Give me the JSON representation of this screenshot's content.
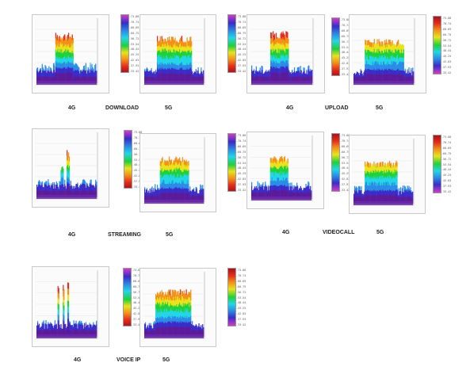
{
  "rows": [
    {
      "left": {
        "label_4g": "4G",
        "service": "DOWNLOAD",
        "label_5g": "5G"
      },
      "right": {
        "label_4g": "4G",
        "service": "UPLOAD",
        "label_5g": "5G"
      }
    },
    {
      "left": {
        "label_4g": "4G",
        "service": "STREAMING",
        "label_5g": "5G"
      },
      "right": {
        "label_4g": "4G",
        "service": "VIDEOCALL",
        "label_5g": "5G"
      }
    },
    {
      "left": {
        "label_4g": "4G",
        "service": "VOICE IP",
        "label_5g": "5G"
      }
    }
  ],
  "colorbar_ticks": [
    "-73.88",
    "-70.74",
    "-68.69",
    "-60.75",
    "-56.72",
    "-53.54",
    "-48.44",
    "-45.25",
    "-42.03",
    "-37.93",
    "-33.42"
  ]
}
